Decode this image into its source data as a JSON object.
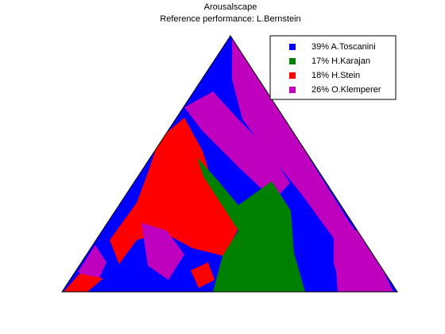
{
  "title": "Arousalscape",
  "subtitle": "Reference performance: L.Bernstein",
  "legend": [
    {
      "label": "39% A.Toscanini",
      "color": "#0000ff"
    },
    {
      "label": "17% H.Karajan",
      "color": "#008000"
    },
    {
      "label": "18% H.Stein",
      "color": "#ff0000"
    },
    {
      "label": "26% O.Klemperer",
      "color": "#bf00bf"
    }
  ]
}
